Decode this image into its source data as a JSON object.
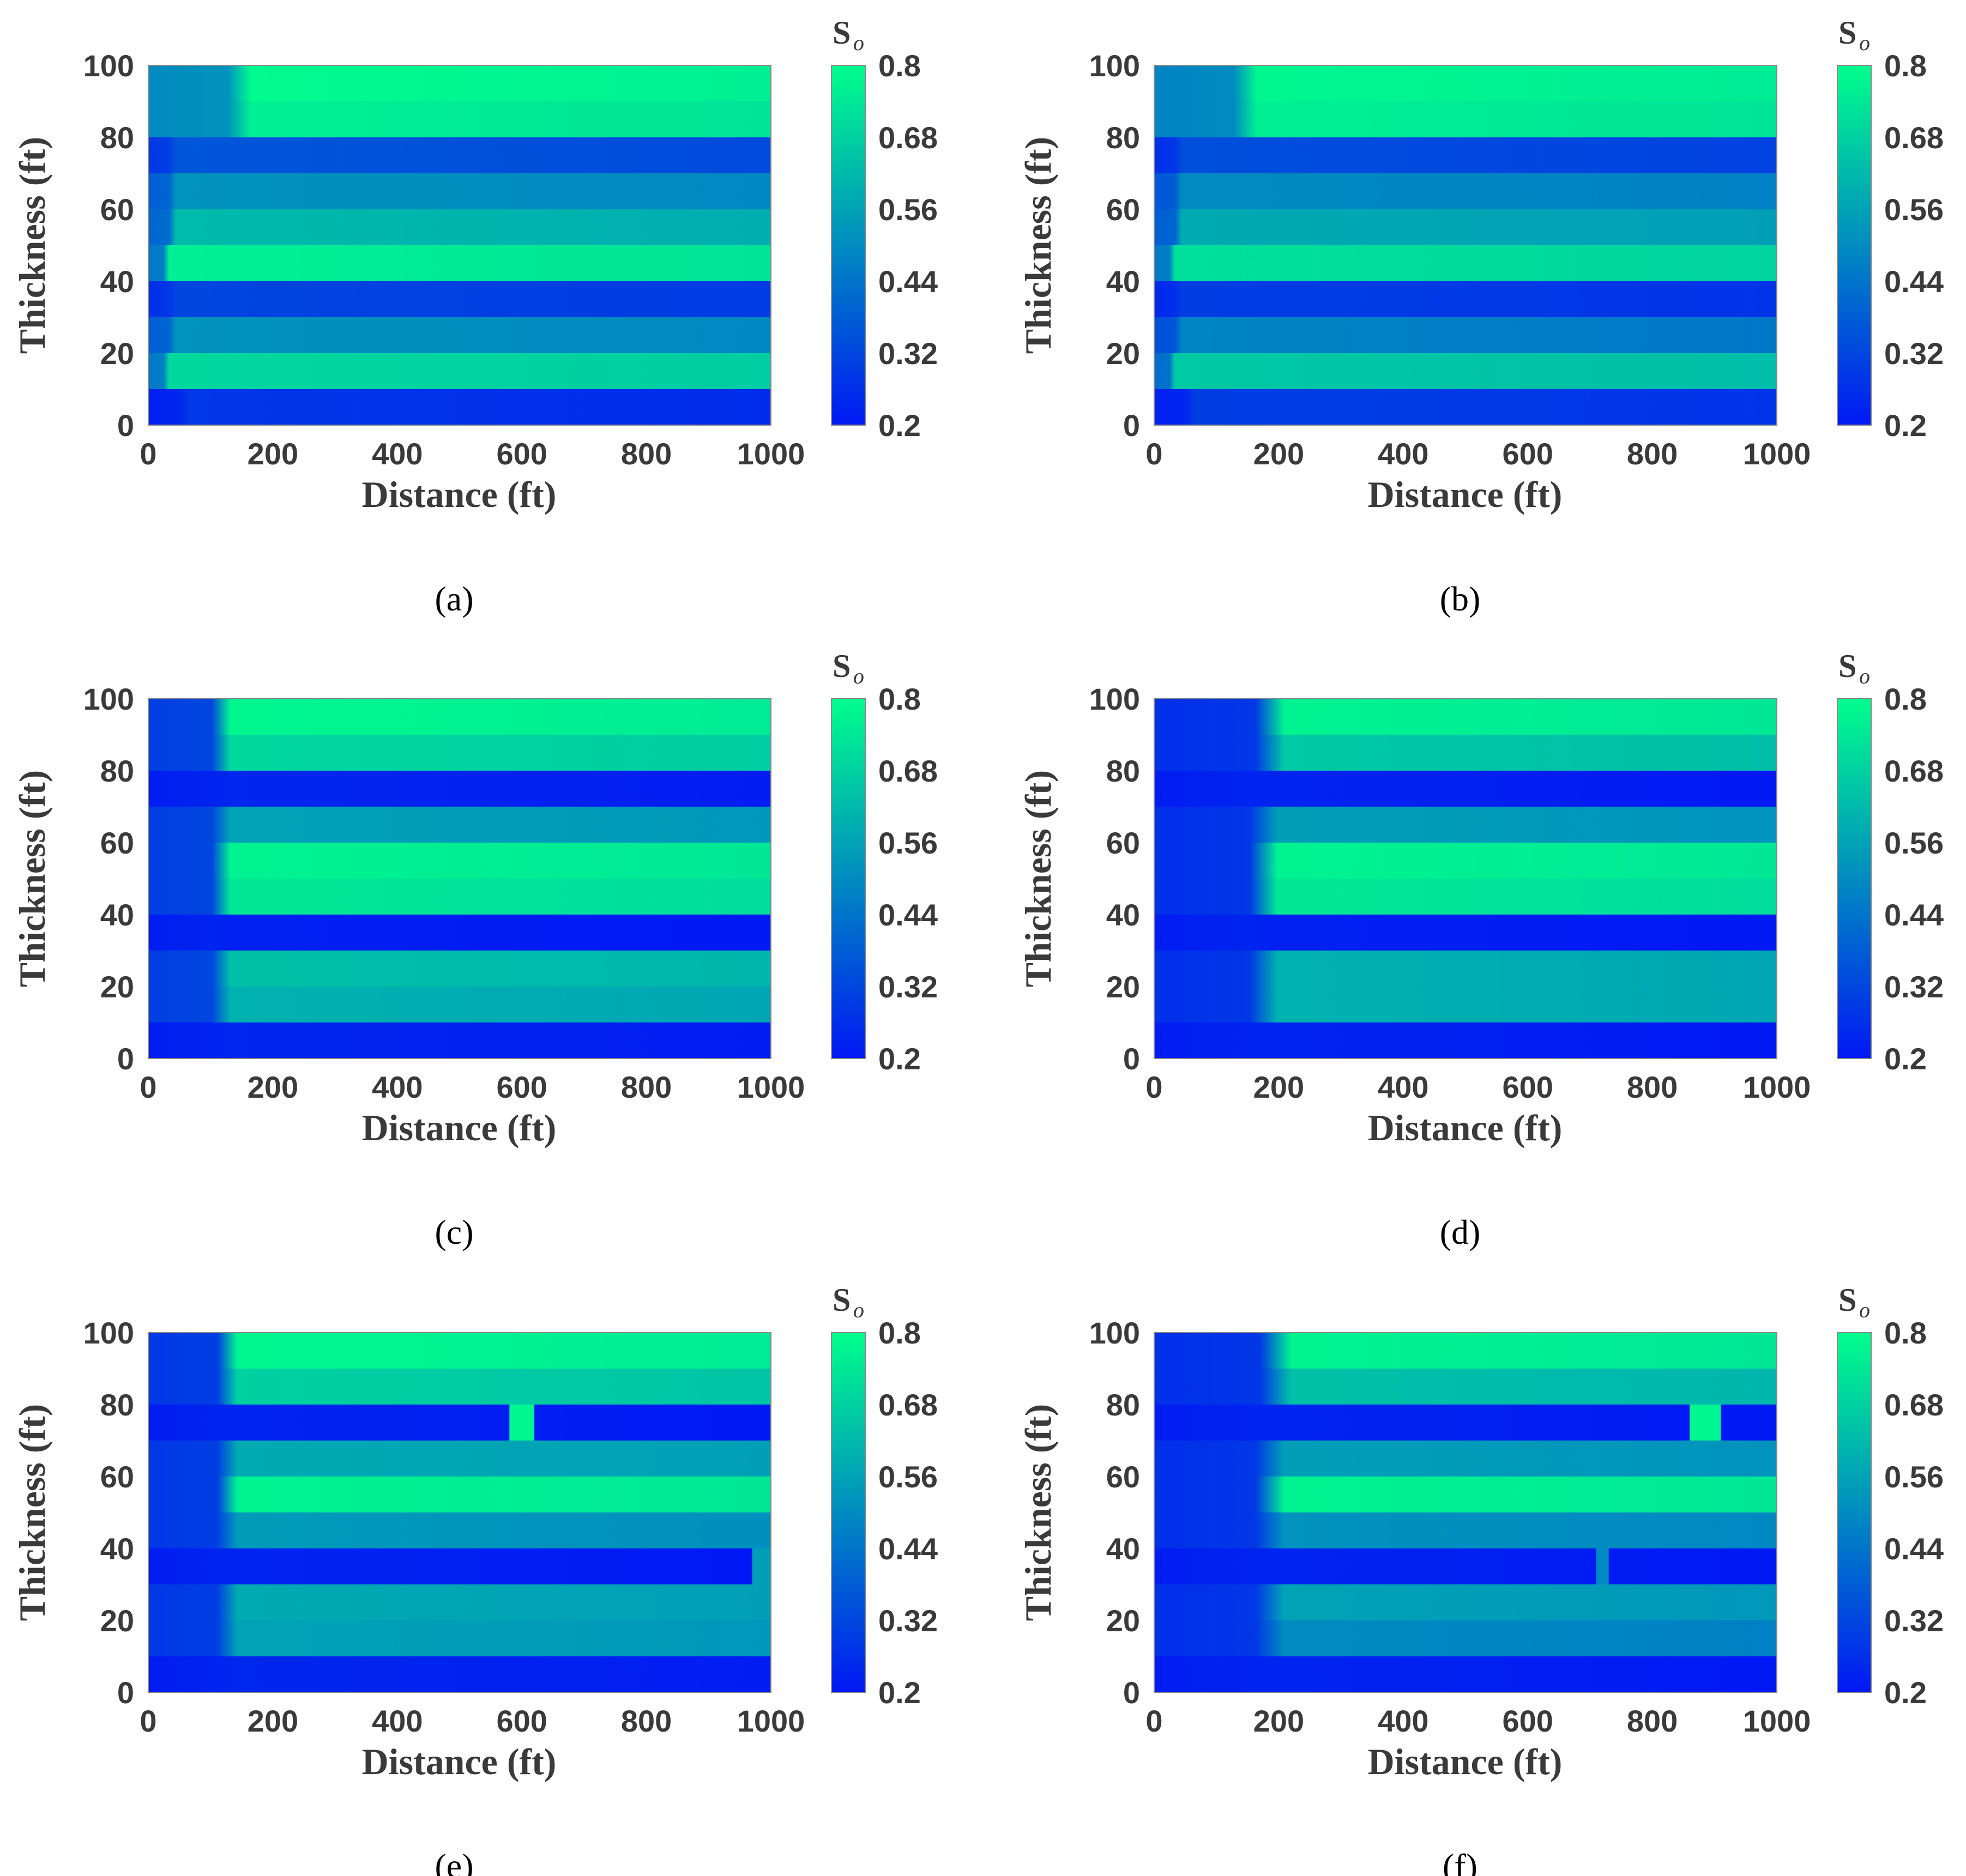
{
  "colors": {
    "low": "#0018f4",
    "high": "#00ff8c",
    "axis": "#3a3a3a"
  },
  "chart_data": [
    {
      "type": "heatmap",
      "panel_label": "(a)",
      "xlabel": "Distance (ft)",
      "ylabel": "Thickness (ft)",
      "xlim": [
        0,
        1000
      ],
      "ylim": [
        0,
        100
      ],
      "xticks": [
        "0",
        "200",
        "400",
        "600",
        "800",
        "1000"
      ],
      "yticks": [
        "0",
        "20",
        "40",
        "60",
        "80",
        "100"
      ],
      "colorbar": {
        "title": "S",
        "subscript": "o",
        "min": 0.2,
        "max": 0.8,
        "ticks": [
          "0.2",
          "0.32",
          "0.44",
          "0.56",
          "0.68",
          "0.8"
        ]
      },
      "layers": [
        {
          "y_range": [
            0,
            10
          ],
          "sat": 0.28,
          "inlet": 0.22,
          "front": 60
        },
        {
          "y_range": [
            10,
            20
          ],
          "sat": 0.7,
          "inlet": 0.45,
          "front": 30
        },
        {
          "y_range": [
            20,
            30
          ],
          "sat": 0.52,
          "inlet": 0.38,
          "front": 40
        },
        {
          "y_range": [
            30,
            40
          ],
          "sat": 0.32,
          "inlet": 0.26,
          "front": 40
        },
        {
          "y_range": [
            40,
            50
          ],
          "sat": 0.76,
          "inlet": 0.45,
          "front": 30
        },
        {
          "y_range": [
            50,
            60
          ],
          "sat": 0.62,
          "inlet": 0.4,
          "front": 40
        },
        {
          "y_range": [
            60,
            70
          ],
          "sat": 0.52,
          "inlet": 0.38,
          "front": 40
        },
        {
          "y_range": [
            70,
            80
          ],
          "sat": 0.36,
          "inlet": 0.28,
          "front": 40
        },
        {
          "y_range": [
            80,
            90
          ],
          "sat": 0.76,
          "inlet": 0.5,
          "front": 150
        },
        {
          "y_range": [
            90,
            100
          ],
          "sat": 0.79,
          "inlet": 0.5,
          "front": 150
        }
      ]
    },
    {
      "type": "heatmap",
      "panel_label": "(b)",
      "xlabel": "Distance (ft)",
      "ylabel": "Thickness (ft)",
      "xlim": [
        0,
        1000
      ],
      "ylim": [
        0,
        100
      ],
      "xticks": [
        "0",
        "200",
        "400",
        "600",
        "800",
        "1000"
      ],
      "yticks": [
        "0",
        "20",
        "40",
        "60",
        "80",
        "100"
      ],
      "colorbar": {
        "title": "S",
        "subscript": "o",
        "min": 0.2,
        "max": 0.8,
        "ticks": [
          "0.2",
          "0.32",
          "0.44",
          "0.56",
          "0.68",
          "0.8"
        ]
      },
      "layers": [
        {
          "y_range": [
            0,
            10
          ],
          "sat": 0.3,
          "inlet": 0.22,
          "front": 60
        },
        {
          "y_range": [
            10,
            20
          ],
          "sat": 0.66,
          "inlet": 0.42,
          "front": 30
        },
        {
          "y_range": [
            20,
            30
          ],
          "sat": 0.48,
          "inlet": 0.34,
          "front": 40
        },
        {
          "y_range": [
            30,
            40
          ],
          "sat": 0.3,
          "inlet": 0.24,
          "front": 40
        },
        {
          "y_range": [
            40,
            50
          ],
          "sat": 0.72,
          "inlet": 0.45,
          "front": 30
        },
        {
          "y_range": [
            50,
            60
          ],
          "sat": 0.58,
          "inlet": 0.38,
          "front": 40
        },
        {
          "y_range": [
            60,
            70
          ],
          "sat": 0.5,
          "inlet": 0.36,
          "front": 40
        },
        {
          "y_range": [
            70,
            80
          ],
          "sat": 0.34,
          "inlet": 0.26,
          "front": 40
        },
        {
          "y_range": [
            80,
            90
          ],
          "sat": 0.76,
          "inlet": 0.48,
          "front": 150
        },
        {
          "y_range": [
            90,
            100
          ],
          "sat": 0.78,
          "inlet": 0.48,
          "front": 150
        }
      ]
    },
    {
      "type": "heatmap",
      "panel_label": "(c)",
      "xlabel": "Distance (ft)",
      "ylabel": "Thickness (ft)",
      "xlim": [
        0,
        1000
      ],
      "ylim": [
        0,
        100
      ],
      "xticks": [
        "0",
        "200",
        "400",
        "600",
        "800",
        "1000"
      ],
      "yticks": [
        "0",
        "20",
        "40",
        "60",
        "80",
        "100"
      ],
      "colorbar": {
        "title": "S",
        "subscript": "o",
        "min": 0.2,
        "max": 0.8,
        "ticks": [
          "0.2",
          "0.32",
          "0.44",
          "0.56",
          "0.68",
          "0.8"
        ]
      },
      "layers": [
        {
          "y_range": [
            0,
            10
          ],
          "sat": 0.24,
          "inlet": 0.21,
          "front": 120
        },
        {
          "y_range": [
            10,
            20
          ],
          "sat": 0.6,
          "inlet": 0.3,
          "front": 120
        },
        {
          "y_range": [
            20,
            30
          ],
          "sat": 0.64,
          "inlet": 0.3,
          "front": 120
        },
        {
          "y_range": [
            30,
            40
          ],
          "sat": 0.22,
          "inlet": 0.21,
          "front": 120
        },
        {
          "y_range": [
            40,
            50
          ],
          "sat": 0.74,
          "inlet": 0.3,
          "front": 120
        },
        {
          "y_range": [
            50,
            60
          ],
          "sat": 0.77,
          "inlet": 0.3,
          "front": 120
        },
        {
          "y_range": [
            60,
            70
          ],
          "sat": 0.56,
          "inlet": 0.3,
          "front": 120
        },
        {
          "y_range": [
            70,
            80
          ],
          "sat": 0.24,
          "inlet": 0.21,
          "front": 120
        },
        {
          "y_range": [
            80,
            90
          ],
          "sat": 0.7,
          "inlet": 0.3,
          "front": 120
        },
        {
          "y_range": [
            90,
            100
          ],
          "sat": 0.78,
          "inlet": 0.3,
          "front": 120
        }
      ]
    },
    {
      "type": "heatmap",
      "panel_label": "(d)",
      "xlabel": "Distance (ft)",
      "ylabel": "Thickness (ft)",
      "xlim": [
        0,
        1000
      ],
      "ylim": [
        0,
        100
      ],
      "xticks": [
        "0",
        "200",
        "400",
        "600",
        "800",
        "1000"
      ],
      "yticks": [
        "0",
        "20",
        "40",
        "60",
        "80",
        "100"
      ],
      "colorbar": {
        "title": "S",
        "subscript": "o",
        "min": 0.2,
        "max": 0.8,
        "ticks": [
          "0.2",
          "0.32",
          "0.44",
          "0.56",
          "0.68",
          "0.8"
        ]
      },
      "layers": [
        {
          "y_range": [
            0,
            10
          ],
          "sat": 0.23,
          "inlet": 0.21,
          "front": 190
        },
        {
          "y_range": [
            10,
            20
          ],
          "sat": 0.6,
          "inlet": 0.26,
          "front": 180
        },
        {
          "y_range": [
            20,
            30
          ],
          "sat": 0.6,
          "inlet": 0.26,
          "front": 180
        },
        {
          "y_range": [
            30,
            40
          ],
          "sat": 0.22,
          "inlet": 0.21,
          "front": 180
        },
        {
          "y_range": [
            40,
            50
          ],
          "sat": 0.74,
          "inlet": 0.26,
          "front": 180
        },
        {
          "y_range": [
            50,
            60
          ],
          "sat": 0.77,
          "inlet": 0.26,
          "front": 180
        },
        {
          "y_range": [
            60,
            70
          ],
          "sat": 0.55,
          "inlet": 0.26,
          "front": 180
        },
        {
          "y_range": [
            70,
            80
          ],
          "sat": 0.23,
          "inlet": 0.21,
          "front": 180
        },
        {
          "y_range": [
            80,
            90
          ],
          "sat": 0.66,
          "inlet": 0.26,
          "front": 190
        },
        {
          "y_range": [
            90,
            100
          ],
          "sat": 0.77,
          "inlet": 0.26,
          "front": 190
        }
      ]
    },
    {
      "type": "heatmap",
      "panel_label": "(e)",
      "xlabel": "Distance (ft)",
      "ylabel": "Thickness (ft)",
      "xlim": [
        0,
        1000
      ],
      "ylim": [
        0,
        100
      ],
      "xticks": [
        "0",
        "200",
        "400",
        "600",
        "800",
        "1000"
      ],
      "yticks": [
        "0",
        "20",
        "40",
        "60",
        "80",
        "100"
      ],
      "colorbar": {
        "title": "S",
        "subscript": "o",
        "min": 0.2,
        "max": 0.8,
        "ticks": [
          "0.2",
          "0.32",
          "0.44",
          "0.56",
          "0.68",
          "0.8"
        ]
      },
      "layers": [
        {
          "y_range": [
            0,
            10
          ],
          "sat": 0.24,
          "inlet": 0.21,
          "front": 130
        },
        {
          "y_range": [
            10,
            20
          ],
          "sat": 0.56,
          "inlet": 0.28,
          "front": 130
        },
        {
          "y_range": [
            20,
            30
          ],
          "sat": 0.58,
          "inlet": 0.28,
          "front": 130
        },
        {
          "y_range": [
            30,
            40
          ],
          "sat": 0.23,
          "inlet": 0.21,
          "front": 130
        },
        {
          "y_range": [
            40,
            50
          ],
          "sat": 0.54,
          "inlet": 0.28,
          "front": 130
        },
        {
          "y_range": [
            50,
            60
          ],
          "sat": 0.77,
          "inlet": 0.28,
          "front": 130
        },
        {
          "y_range": [
            60,
            70
          ],
          "sat": 0.58,
          "inlet": 0.28,
          "front": 130
        },
        {
          "y_range": [
            70,
            80
          ],
          "sat": 0.23,
          "inlet": 0.21,
          "front": 130
        },
        {
          "y_range": [
            80,
            90
          ],
          "sat": 0.68,
          "inlet": 0.28,
          "front": 130
        },
        {
          "y_range": [
            90,
            100
          ],
          "sat": 0.78,
          "inlet": 0.28,
          "front": 130
        }
      ],
      "highlights": [
        {
          "x_range": [
            580,
            620
          ],
          "y_range": [
            70,
            80
          ],
          "sat": 0.78
        },
        {
          "x_range": [
            970,
            1000
          ],
          "y_range": [
            30,
            40
          ],
          "sat": 0.55
        }
      ]
    },
    {
      "type": "heatmap",
      "panel_label": "(f)",
      "xlabel": "Distance (ft)",
      "ylabel": "Thickness (ft)",
      "xlim": [
        0,
        1000
      ],
      "ylim": [
        0,
        100
      ],
      "xticks": [
        "0",
        "200",
        "400",
        "600",
        "800",
        "1000"
      ],
      "yticks": [
        "0",
        "20",
        "40",
        "60",
        "80",
        "100"
      ],
      "colorbar": {
        "title": "S",
        "subscript": "o",
        "min": 0.2,
        "max": 0.8,
        "ticks": [
          "0.2",
          "0.32",
          "0.44",
          "0.56",
          "0.68",
          "0.8"
        ]
      },
      "layers": [
        {
          "y_range": [
            0,
            10
          ],
          "sat": 0.23,
          "inlet": 0.21,
          "front": 200
        },
        {
          "y_range": [
            10,
            20
          ],
          "sat": 0.5,
          "inlet": 0.26,
          "front": 190
        },
        {
          "y_range": [
            20,
            30
          ],
          "sat": 0.56,
          "inlet": 0.26,
          "front": 190
        },
        {
          "y_range": [
            30,
            40
          ],
          "sat": 0.23,
          "inlet": 0.21,
          "front": 190
        },
        {
          "y_range": [
            40,
            50
          ],
          "sat": 0.52,
          "inlet": 0.26,
          "front": 190
        },
        {
          "y_range": [
            50,
            60
          ],
          "sat": 0.77,
          "inlet": 0.26,
          "front": 190
        },
        {
          "y_range": [
            60,
            70
          ],
          "sat": 0.55,
          "inlet": 0.26,
          "front": 190
        },
        {
          "y_range": [
            70,
            80
          ],
          "sat": 0.23,
          "inlet": 0.21,
          "front": 200
        },
        {
          "y_range": [
            80,
            90
          ],
          "sat": 0.64,
          "inlet": 0.26,
          "front": 200
        },
        {
          "y_range": [
            90,
            100
          ],
          "sat": 0.77,
          "inlet": 0.26,
          "front": 200
        }
      ],
      "highlights": [
        {
          "x_range": [
            860,
            910
          ],
          "y_range": [
            70,
            80
          ],
          "sat": 0.78
        },
        {
          "x_range": [
            710,
            730
          ],
          "y_range": [
            30,
            40
          ],
          "sat": 0.5
        }
      ]
    }
  ]
}
